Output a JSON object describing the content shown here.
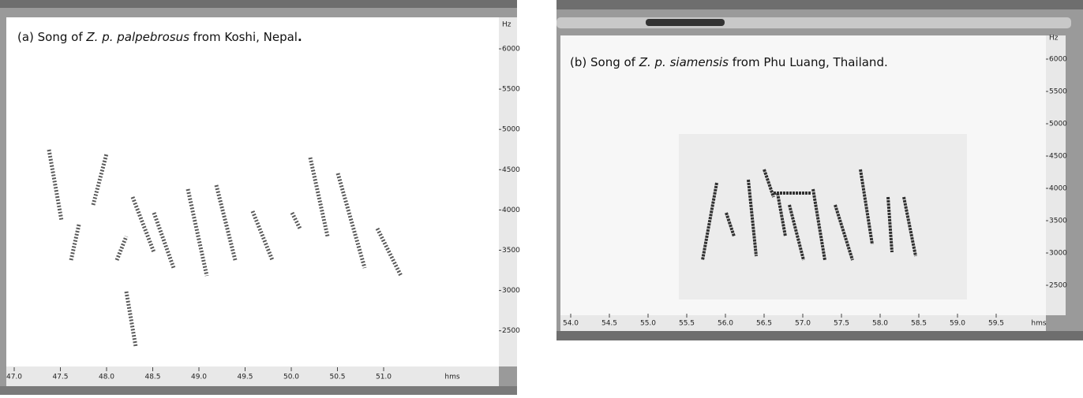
{
  "panels": [
    {
      "caption": {
        "prefix": "(a) Song of ",
        "taxon": "Z. p. palpebrosus",
        "suffix": " from Koshi, Nepal",
        "end": "."
      },
      "y_unit": "Hz",
      "yticks": [
        "6000",
        "5500",
        "5000",
        "4500",
        "4000",
        "3500",
        "3000",
        "2500"
      ],
      "x_unit": "hms",
      "xticks": [
        "47.0",
        "47.5",
        "48.0",
        "48.5",
        "49.0",
        "49.5",
        "50.0",
        "50.5",
        "51.0"
      ]
    },
    {
      "caption": {
        "prefix": "(b) Song of ",
        "taxon": "Z. p. siamensis",
        "suffix": " from Phu Luang, Thailand."
      },
      "y_unit": "Hz",
      "yticks": [
        "6000",
        "5500",
        "5000",
        "4500",
        "4000",
        "3500",
        "3000",
        "2500"
      ],
      "x_unit": "hms",
      "xticks": [
        "54.0",
        "54.5",
        "55.0",
        "55.5",
        "56.0",
        "56.5",
        "57.0",
        "57.5",
        "58.0",
        "58.5",
        "59.0",
        "59.5"
      ]
    }
  ]
}
